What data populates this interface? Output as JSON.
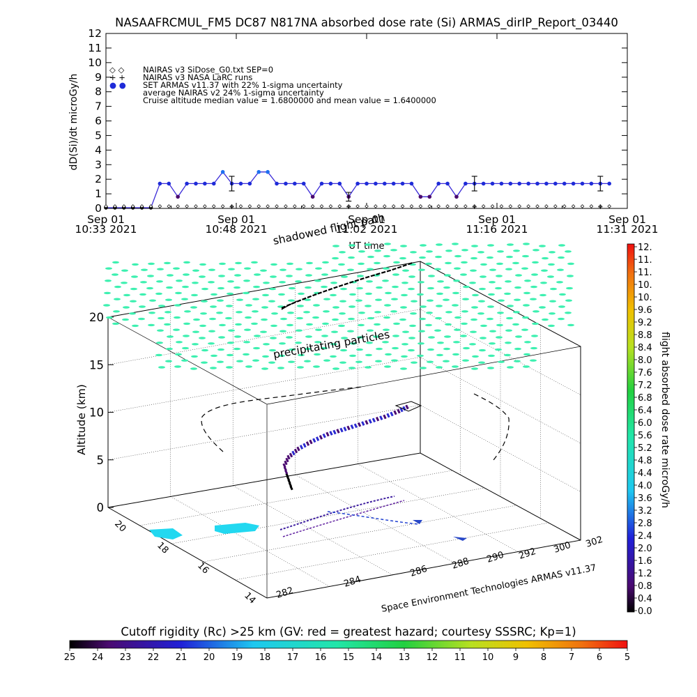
{
  "title": "NASAAFRCMUL_FM5 DC87 N817NA absorbed dose rate (Si) ARMAS_dirIP_Report_03440",
  "colors": {
    "series_armas": "#1E2BD8",
    "precip": "#3DF0B0",
    "island": "#22D8F0"
  },
  "chart_data": [
    {
      "type": "line",
      "ylabel": "dD(Si)/dt microGy/h",
      "xlabel": "UT time",
      "ylim": [
        0,
        12
      ],
      "yticks": [
        "0",
        "1",
        "2",
        "3",
        "4",
        "5",
        "6",
        "7",
        "8",
        "9",
        "10",
        "11",
        "12"
      ],
      "xticks": [
        {
          "line1": "Sep 01",
          "line2": "10:33 2021"
        },
        {
          "line1": "Sep 01",
          "line2": "10:48 2021"
        },
        {
          "line1": "Sep 01",
          "line2": "11:02 2021"
        },
        {
          "line1": "Sep 01",
          "line2": "11:16 2021"
        },
        {
          "line1": "Sep 01",
          "line2": "11:31 2021"
        }
      ],
      "xrange_minutes": [
        0,
        58
      ],
      "legend": [
        {
          "symbol": "◇ ◇",
          "text": "NAIRAS v3 SiDose_G0.txt SEP=0"
        },
        {
          "symbol": "+ +",
          "text": "NAIRAS v3 NASA LaRC runs"
        },
        {
          "symbol": "● ●",
          "text": "SET ARMAS v11.37 with 22% 1-sigma uncertainty"
        },
        {
          "symbol": "",
          "text": "average NAIRAS v2 24% 1-sigma uncertainty"
        },
        {
          "symbol": "",
          "text": "Cruise altitude median value = 1.6800000 and mean value = 1.6400000"
        }
      ],
      "series": [
        {
          "name": "SET ARMAS v11.37 with 22% 1-sigma uncertainty",
          "x": [
            0,
            1,
            2,
            3,
            4,
            5,
            6,
            7,
            8,
            9,
            10,
            11,
            12,
            13,
            14,
            15,
            16,
            17,
            18,
            19,
            20,
            21,
            22,
            23,
            24,
            25,
            26,
            27,
            28,
            29,
            30,
            31,
            32,
            33,
            34,
            35,
            36,
            37,
            38,
            39,
            40,
            41,
            42,
            43,
            44,
            45,
            46,
            47,
            48,
            49,
            50,
            51,
            52,
            53,
            54,
            55,
            56
          ],
          "y": [
            0.05,
            0.05,
            0.05,
            0.05,
            0.05,
            0.05,
            1.7,
            1.7,
            0.8,
            1.7,
            1.7,
            1.7,
            1.7,
            2.5,
            1.7,
            1.7,
            1.7,
            2.5,
            2.5,
            1.7,
            1.7,
            1.7,
            1.7,
            0.8,
            1.7,
            1.7,
            1.7,
            0.8,
            1.7,
            1.7,
            1.7,
            1.7,
            1.7,
            1.7,
            1.7,
            0.8,
            0.8,
            1.7,
            1.7,
            0.8,
            1.7,
            1.7,
            1.7,
            1.7,
            1.7,
            1.7,
            1.7,
            1.7,
            1.7,
            1.7,
            1.7,
            1.7,
            1.7,
            1.7,
            1.7,
            1.7,
            1.7
          ]
        },
        {
          "name": "NAIRAS v3 SiDose_G0.txt SEP=0",
          "x": [
            0,
            1,
            2,
            3,
            4,
            5,
            6,
            7,
            8,
            9,
            10,
            11,
            12,
            13,
            14,
            15,
            16,
            17,
            18,
            19,
            20,
            21,
            22,
            23,
            24,
            25,
            26,
            27,
            28,
            29,
            30,
            31,
            32,
            33,
            34,
            35,
            36,
            37,
            38,
            39,
            40,
            41,
            42,
            43,
            44,
            45,
            46,
            47,
            48,
            49,
            50,
            51,
            52,
            53,
            54,
            55,
            56
          ],
          "y": [
            0.05,
            0.05,
            0.05,
            0.05,
            0.05,
            0.05,
            0.05,
            0.05,
            0.05,
            0.05,
            0.05,
            0.05,
            0.05,
            0.05,
            0.05,
            0.05,
            0.05,
            0.05,
            0.05,
            0.05,
            0.05,
            0.05,
            0.05,
            0.05,
            0.05,
            0.05,
            0.05,
            0.05,
            0.05,
            0.05,
            0.05,
            0.05,
            0.05,
            0.05,
            0.05,
            0.05,
            0.05,
            0.05,
            0.05,
            0.05,
            0.05,
            0.05,
            0.05,
            0.05,
            0.05,
            0.05,
            0.05,
            0.05,
            0.05,
            0.05,
            0.05,
            0.05,
            0.05,
            0.05,
            0.05,
            0.05,
            0.05
          ]
        }
      ],
      "error_bars": [
        {
          "x": 14,
          "y": 1.7,
          "lo": 1.2,
          "hi": 2.2
        },
        {
          "x": 27,
          "y": 0.8,
          "lo": 0.5,
          "hi": 1.1
        },
        {
          "x": 41,
          "y": 1.7,
          "lo": 1.2,
          "hi": 2.2
        },
        {
          "x": 55,
          "y": 1.7,
          "lo": 1.2,
          "hi": 2.2
        }
      ],
      "larc_points_x": [
        14,
        27,
        41,
        55
      ]
    },
    {
      "type": "scatter",
      "zlabel": "Altitude (km)",
      "zticks": [
        "0",
        "5",
        "10",
        "15",
        "20"
      ],
      "ylabel_ticks": [
        "14",
        "16",
        "18",
        "20"
      ],
      "xlabel_ticks": [
        "282",
        "284",
        "286",
        "288",
        "290",
        "292",
        "300",
        "302"
      ],
      "annotations": [
        "shadowed flight path",
        "precipitating particles"
      ],
      "credit": "Space Environment Technologies ARMAS v11.37"
    }
  ],
  "colorbar_right": {
    "label": "flight absorbed dose rate microGy/h",
    "ticks": [
      "12.",
      "11.",
      "11.",
      "10.",
      "10.",
      "9.6",
      "9.2",
      "8.8",
      "8.4",
      "8.0",
      "7.6",
      "7.2",
      "6.8",
      "6.4",
      "6.0",
      "5.6",
      "5.2",
      "4.8",
      "4.4",
      "4.0",
      "3.6",
      "3.2",
      "2.8",
      "2.4",
      "2.0",
      "1.6",
      "1.2",
      "0.8",
      "0.4",
      "0.0"
    ]
  },
  "colorbar_bottom": {
    "title": "Cutoff rigidity (Rc) >25 km (GV: red = greatest hazard; courtesy SSSRC; Kp=1)",
    "ticks": [
      "25",
      "24",
      "23",
      "22",
      "21",
      "20",
      "19",
      "18",
      "17",
      "16",
      "15",
      "14",
      "13",
      "12",
      "11",
      "10",
      "9",
      "8",
      "7",
      "6",
      "5"
    ]
  }
}
